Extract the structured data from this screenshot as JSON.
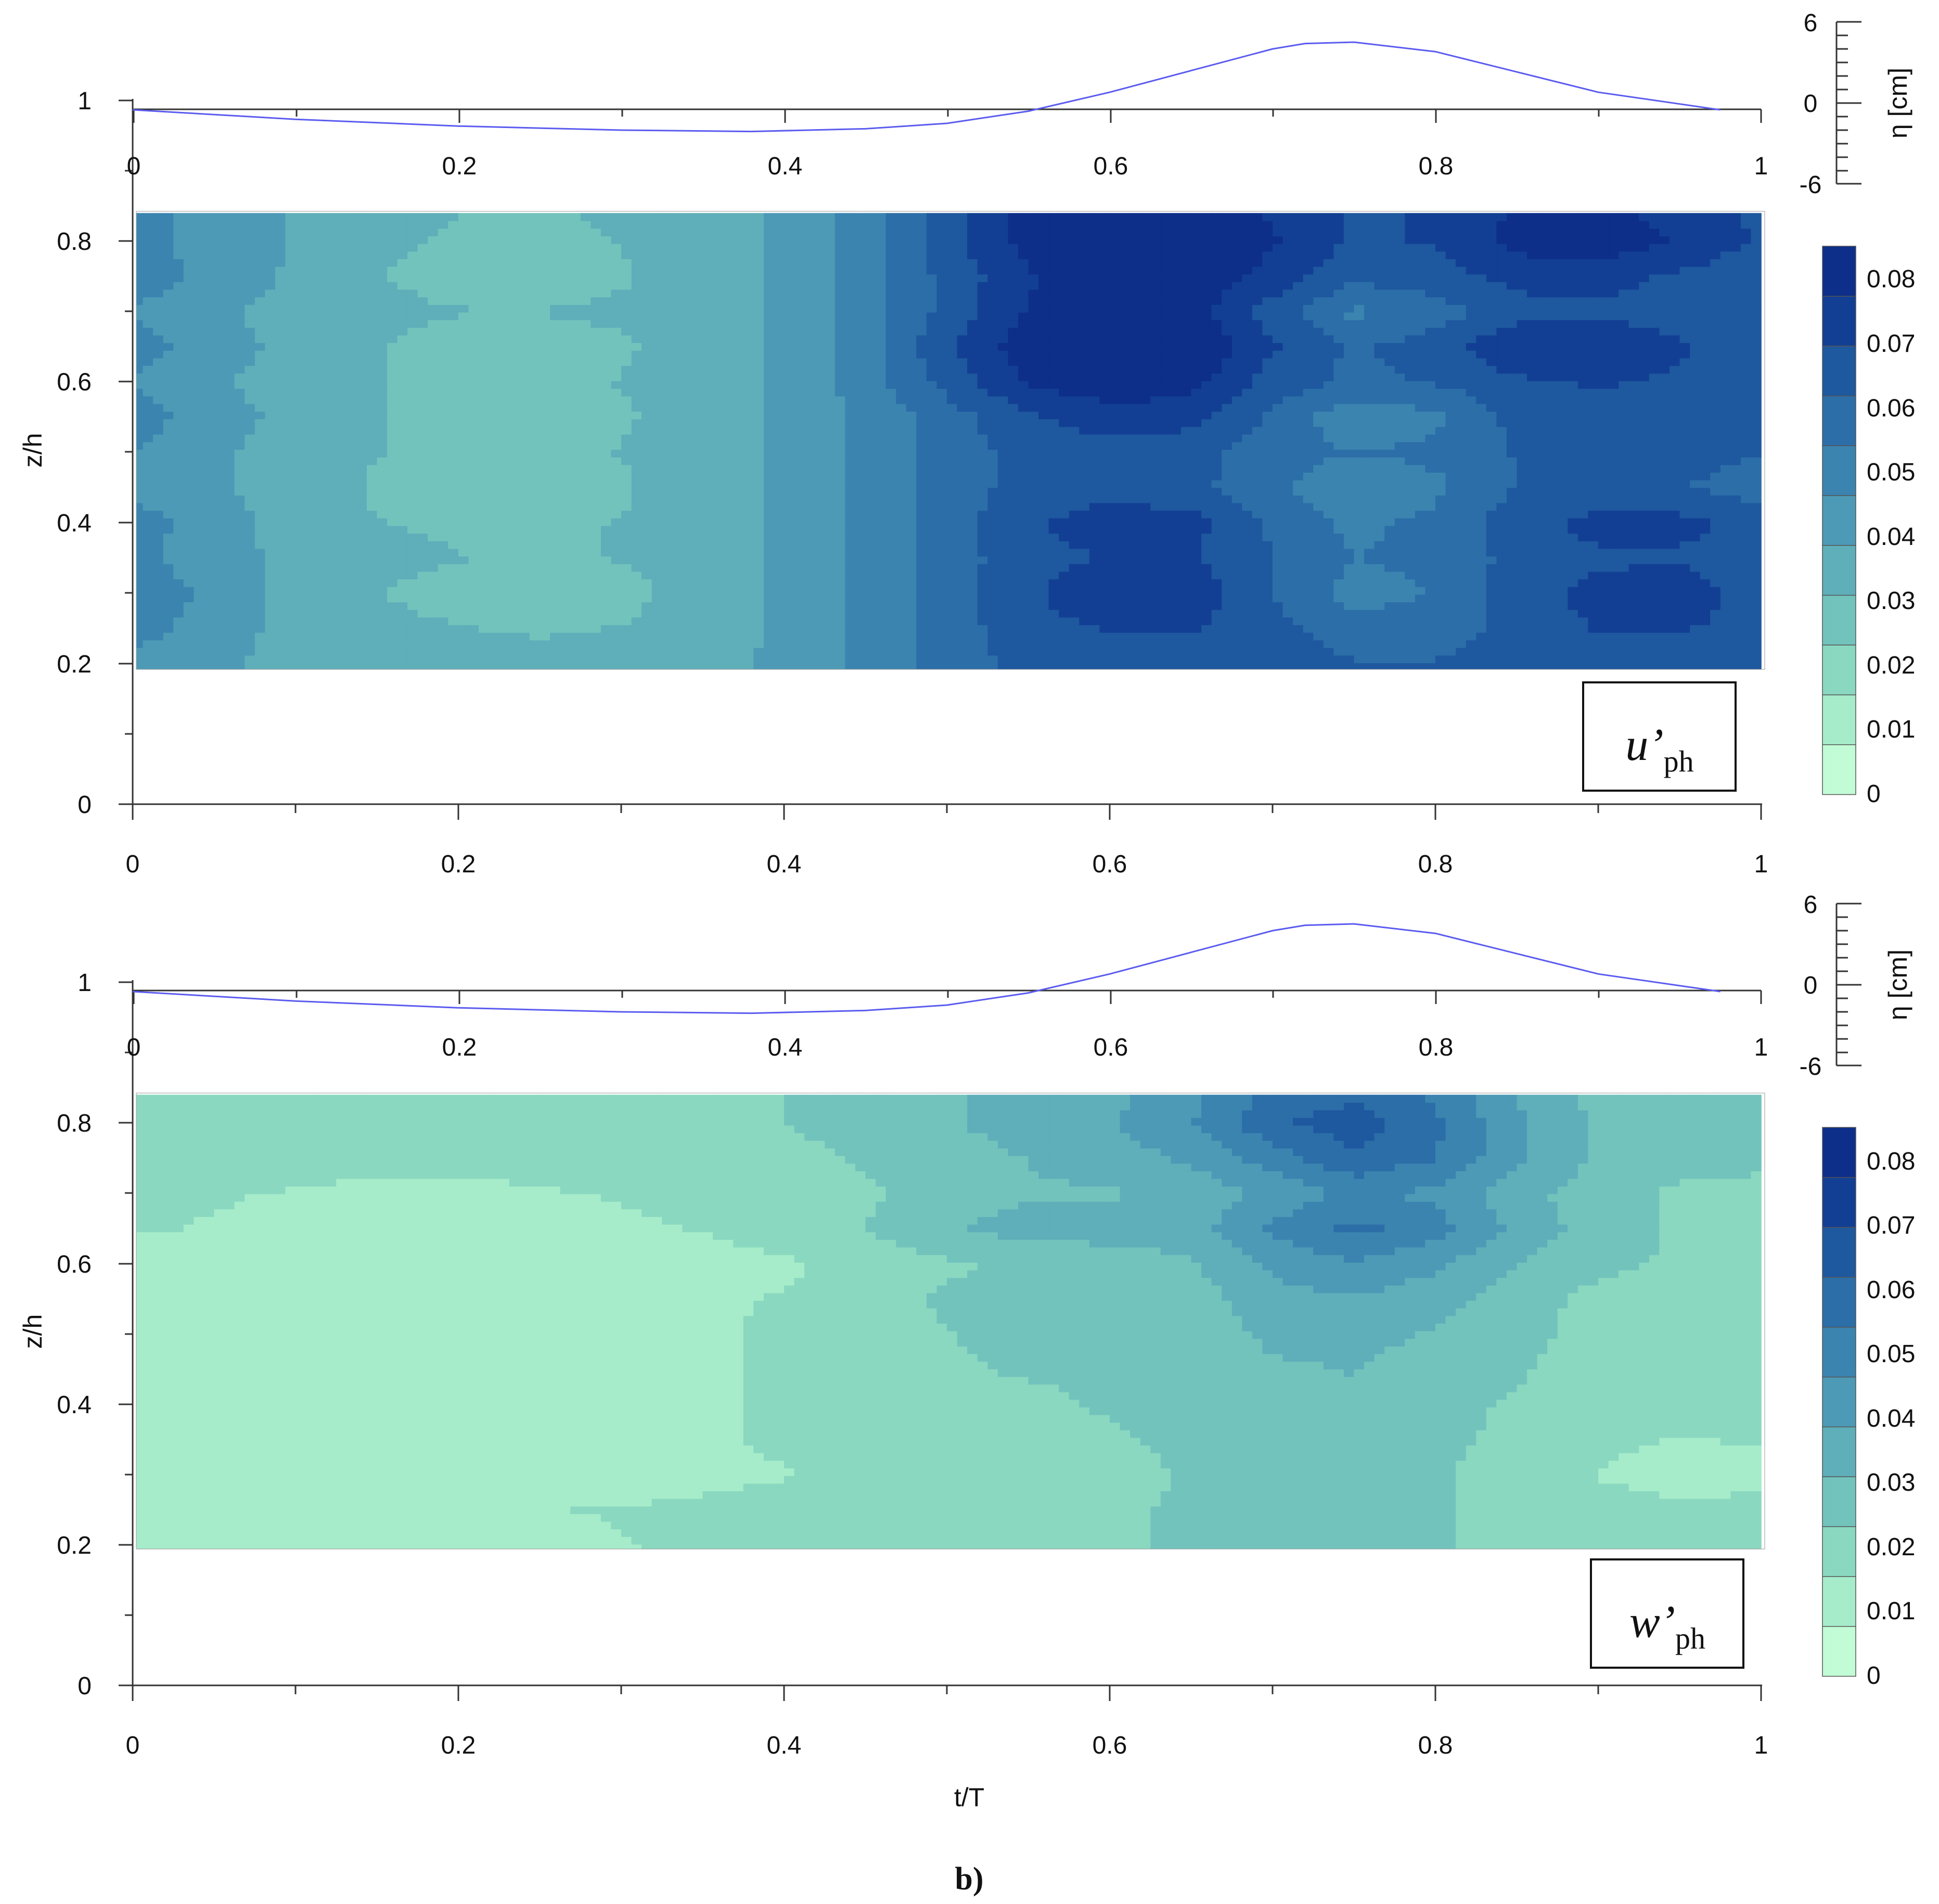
{
  "panels": [
    {
      "id": "u",
      "quantity_symbol": "u",
      "quantity_prime": "’",
      "quantity_sub": "ph",
      "eta_axis_label": "η [cm]",
      "eta_ticks": [
        "6",
        "0",
        "-6"
      ],
      "ylabel": "z/h",
      "ref_tick": "1",
      "y_ticks": [
        "0.8",
        "0.6",
        "0.4",
        "0.2",
        "0"
      ],
      "x_ticks_top": [
        "0",
        "0.2",
        "0.4",
        "0.6",
        "0.8",
        "1"
      ],
      "x_ticks_bottom": [
        "0",
        "0.2",
        "0.4",
        "0.6",
        "0.8",
        "1"
      ],
      "colorbar_ticks": [
        "0.08",
        "0.07",
        "0.06",
        "0.05",
        "0.04",
        "0.03",
        "0.02",
        "0.01",
        "0"
      ]
    },
    {
      "id": "w",
      "quantity_symbol": "w",
      "quantity_prime": "’",
      "quantity_sub": "ph",
      "eta_axis_label": "η [cm]",
      "eta_ticks": [
        "6",
        "0",
        "-6"
      ],
      "ylabel": "z/h",
      "ref_tick": "1",
      "y_ticks": [
        "0.8",
        "0.6",
        "0.4",
        "0.2",
        "0"
      ],
      "x_ticks_top": [
        "0",
        "0.2",
        "0.4",
        "0.6",
        "0.8",
        "1"
      ],
      "x_ticks_bottom": [
        "0",
        "0.2",
        "0.4",
        "0.6",
        "0.8",
        "1"
      ],
      "colorbar_ticks": [
        "0.08",
        "0.07",
        "0.06",
        "0.05",
        "0.04",
        "0.03",
        "0.02",
        "0.01",
        "0"
      ]
    }
  ],
  "xlabel": "t/T",
  "figure_caption": "b)",
  "colors": {
    "levels": [
      "#c2fcd6",
      "#a6ecca",
      "#8ad8c0",
      "#73c3bd",
      "#5fafba",
      "#4d9ab6",
      "#3b84b0",
      "#2c6ea8",
      "#1e589f",
      "#123f93",
      "#0d2f8a"
    ],
    "wave_line": "#5b5bf0"
  },
  "chart_data": [
    {
      "type": "heatmap",
      "quantity": "u'ph",
      "xlabel": "t/T",
      "ylabel": "z/h",
      "xlim": [
        0,
        1
      ],
      "ylim": [
        0,
        1
      ],
      "data_ylim": [
        0.19,
        0.84
      ],
      "colorbar": {
        "label": "",
        "range": [
          0,
          0.085
        ],
        "step": 0.0077
      },
      "surface_elevation": {
        "axis_label": "η [cm]",
        "ylim": [
          -6,
          6
        ],
        "t": [
          0,
          0.1,
          0.2,
          0.3,
          0.38,
          0.45,
          0.5,
          0.55,
          0.6,
          0.65,
          0.7,
          0.72,
          0.75,
          0.8,
          0.85,
          0.9,
          0.975
        ],
        "eta": [
          -0.5,
          -1.2,
          -1.7,
          -2.0,
          -2.1,
          -1.9,
          -1.5,
          -0.6,
          0.8,
          2.4,
          4.0,
          4.4,
          4.5,
          3.8,
          2.3,
          0.8,
          -0.5
        ]
      },
      "approx_field": {
        "t": [
          0,
          0.05,
          0.1,
          0.15,
          0.2,
          0.25,
          0.3,
          0.35,
          0.4,
          0.45,
          0.5,
          0.55,
          0.6,
          0.65,
          0.7,
          0.75,
          0.8,
          0.85,
          0.9,
          0.95,
          1.0
        ],
        "z": [
          0.2,
          0.25,
          0.3,
          0.35,
          0.4,
          0.45,
          0.5,
          0.55,
          0.6,
          0.65,
          0.7,
          0.75,
          0.8,
          0.84
        ],
        "values": [
          [
            0.044,
            0.04,
            0.036,
            0.034,
            0.033,
            0.033,
            0.034,
            0.036,
            0.04,
            0.048,
            0.058,
            0.064,
            0.066,
            0.066,
            0.064,
            0.062,
            0.062,
            0.064,
            0.066,
            0.066,
            0.066
          ],
          [
            0.05,
            0.042,
            0.036,
            0.032,
            0.031,
            0.03,
            0.031,
            0.034,
            0.04,
            0.048,
            0.058,
            0.066,
            0.07,
            0.07,
            0.064,
            0.058,
            0.058,
            0.064,
            0.07,
            0.07,
            0.066
          ],
          [
            0.052,
            0.044,
            0.036,
            0.031,
            0.029,
            0.026,
            0.029,
            0.033,
            0.04,
            0.048,
            0.058,
            0.068,
            0.076,
            0.074,
            0.062,
            0.05,
            0.054,
            0.066,
            0.072,
            0.074,
            0.066
          ],
          [
            0.048,
            0.042,
            0.036,
            0.032,
            0.031,
            0.03,
            0.031,
            0.034,
            0.04,
            0.048,
            0.058,
            0.066,
            0.07,
            0.07,
            0.062,
            0.054,
            0.056,
            0.064,
            0.068,
            0.068,
            0.064
          ],
          [
            0.05,
            0.042,
            0.035,
            0.031,
            0.03,
            0.03,
            0.031,
            0.034,
            0.04,
            0.048,
            0.058,
            0.068,
            0.074,
            0.072,
            0.06,
            0.052,
            0.056,
            0.066,
            0.072,
            0.072,
            0.066
          ],
          [
            0.044,
            0.04,
            0.034,
            0.03,
            0.027,
            0.027,
            0.03,
            0.034,
            0.04,
            0.048,
            0.058,
            0.064,
            0.066,
            0.064,
            0.056,
            0.046,
            0.052,
            0.062,
            0.064,
            0.062,
            0.058
          ],
          [
            0.046,
            0.04,
            0.034,
            0.031,
            0.029,
            0.029,
            0.031,
            0.034,
            0.04,
            0.048,
            0.058,
            0.064,
            0.066,
            0.064,
            0.058,
            0.054,
            0.056,
            0.062,
            0.064,
            0.064,
            0.062
          ],
          [
            0.05,
            0.042,
            0.036,
            0.031,
            0.029,
            0.027,
            0.03,
            0.034,
            0.04,
            0.048,
            0.058,
            0.068,
            0.074,
            0.072,
            0.06,
            0.048,
            0.052,
            0.064,
            0.068,
            0.066,
            0.064
          ],
          [
            0.046,
            0.04,
            0.034,
            0.031,
            0.03,
            0.03,
            0.031,
            0.034,
            0.04,
            0.05,
            0.064,
            0.078,
            0.082,
            0.08,
            0.066,
            0.06,
            0.062,
            0.068,
            0.07,
            0.068,
            0.064
          ],
          [
            0.05,
            0.042,
            0.036,
            0.031,
            0.029,
            0.028,
            0.03,
            0.034,
            0.04,
            0.05,
            0.068,
            0.082,
            0.086,
            0.086,
            0.07,
            0.06,
            0.066,
            0.076,
            0.076,
            0.07,
            0.066
          ],
          [
            0.046,
            0.04,
            0.035,
            0.032,
            0.031,
            0.031,
            0.032,
            0.035,
            0.04,
            0.05,
            0.064,
            0.078,
            0.082,
            0.08,
            0.066,
            0.052,
            0.058,
            0.066,
            0.068,
            0.066,
            0.064
          ],
          [
            0.05,
            0.044,
            0.037,
            0.031,
            0.029,
            0.027,
            0.03,
            0.035,
            0.04,
            0.05,
            0.064,
            0.076,
            0.084,
            0.084,
            0.074,
            0.064,
            0.066,
            0.072,
            0.072,
            0.068,
            0.064
          ],
          [
            0.048,
            0.044,
            0.038,
            0.032,
            0.03,
            0.028,
            0.031,
            0.035,
            0.04,
            0.05,
            0.066,
            0.08,
            0.086,
            0.086,
            0.078,
            0.068,
            0.07,
            0.08,
            0.082,
            0.076,
            0.068
          ],
          [
            0.048,
            0.044,
            0.038,
            0.033,
            0.031,
            0.03,
            0.032,
            0.035,
            0.04,
            0.05,
            0.066,
            0.08,
            0.084,
            0.084,
            0.076,
            0.068,
            0.07,
            0.078,
            0.08,
            0.074,
            0.068
          ]
        ]
      }
    },
    {
      "type": "heatmap",
      "quantity": "w'ph",
      "xlabel": "t/T",
      "ylabel": "z/h",
      "xlim": [
        0,
        1
      ],
      "ylim": [
        0,
        1
      ],
      "data_ylim": [
        0.19,
        0.84
      ],
      "colorbar": {
        "label": "",
        "range": [
          0,
          0.085
        ],
        "step": 0.0077
      },
      "surface_elevation": {
        "axis_label": "η [cm]",
        "ylim": [
          -6,
          6
        ],
        "t": [
          0,
          0.1,
          0.2,
          0.3,
          0.38,
          0.45,
          0.5,
          0.55,
          0.6,
          0.65,
          0.7,
          0.72,
          0.75,
          0.8,
          0.85,
          0.9,
          0.975
        ],
        "eta": [
          -0.5,
          -1.2,
          -1.7,
          -2.0,
          -2.1,
          -1.9,
          -1.5,
          -0.6,
          0.8,
          2.4,
          4.0,
          4.4,
          4.5,
          3.8,
          2.3,
          0.8,
          -0.5
        ]
      },
      "approx_field": {
        "t": [
          0,
          0.05,
          0.1,
          0.15,
          0.2,
          0.25,
          0.3,
          0.35,
          0.4,
          0.45,
          0.5,
          0.55,
          0.6,
          0.65,
          0.7,
          0.75,
          0.8,
          0.85,
          0.9,
          0.95,
          1.0
        ],
        "z": [
          0.2,
          0.25,
          0.3,
          0.35,
          0.4,
          0.45,
          0.5,
          0.55,
          0.6,
          0.65,
          0.7,
          0.75,
          0.8,
          0.84
        ],
        "values": [
          [
            0.01,
            0.01,
            0.01,
            0.01,
            0.01,
            0.012,
            0.015,
            0.017,
            0.018,
            0.018,
            0.019,
            0.02,
            0.022,
            0.024,
            0.026,
            0.026,
            0.024,
            0.021,
            0.019,
            0.018,
            0.018
          ],
          [
            0.013,
            0.012,
            0.012,
            0.013,
            0.014,
            0.015,
            0.016,
            0.018,
            0.019,
            0.019,
            0.02,
            0.021,
            0.022,
            0.024,
            0.026,
            0.026,
            0.024,
            0.021,
            0.019,
            0.017,
            0.017
          ],
          [
            0.009,
            0.008,
            0.008,
            0.008,
            0.008,
            0.009,
            0.01,
            0.012,
            0.015,
            0.017,
            0.018,
            0.019,
            0.02,
            0.024,
            0.027,
            0.027,
            0.024,
            0.02,
            0.015,
            0.012,
            0.014
          ],
          [
            0.012,
            0.012,
            0.012,
            0.012,
            0.012,
            0.013,
            0.013,
            0.014,
            0.017,
            0.018,
            0.02,
            0.021,
            0.022,
            0.025,
            0.028,
            0.028,
            0.025,
            0.021,
            0.017,
            0.015,
            0.016
          ],
          [
            0.01,
            0.01,
            0.01,
            0.01,
            0.01,
            0.011,
            0.012,
            0.014,
            0.017,
            0.019,
            0.021,
            0.021,
            0.024,
            0.026,
            0.03,
            0.03,
            0.026,
            0.022,
            0.019,
            0.018,
            0.019
          ],
          [
            0.01,
            0.01,
            0.01,
            0.01,
            0.01,
            0.011,
            0.012,
            0.014,
            0.017,
            0.019,
            0.022,
            0.024,
            0.025,
            0.027,
            0.03,
            0.031,
            0.028,
            0.024,
            0.02,
            0.019,
            0.019
          ],
          [
            0.01,
            0.01,
            0.01,
            0.01,
            0.01,
            0.011,
            0.012,
            0.014,
            0.017,
            0.02,
            0.023,
            0.025,
            0.025,
            0.027,
            0.032,
            0.033,
            0.03,
            0.025,
            0.021,
            0.02,
            0.02
          ],
          [
            0.01,
            0.01,
            0.01,
            0.01,
            0.01,
            0.011,
            0.012,
            0.014,
            0.016,
            0.021,
            0.024,
            0.025,
            0.025,
            0.027,
            0.036,
            0.038,
            0.034,
            0.026,
            0.021,
            0.018,
            0.019
          ],
          [
            0.012,
            0.012,
            0.01,
            0.01,
            0.01,
            0.01,
            0.01,
            0.012,
            0.014,
            0.018,
            0.022,
            0.025,
            0.027,
            0.03,
            0.04,
            0.045,
            0.04,
            0.031,
            0.025,
            0.022,
            0.022
          ],
          [
            0.016,
            0.015,
            0.013,
            0.012,
            0.012,
            0.012,
            0.014,
            0.016,
            0.02,
            0.023,
            0.03,
            0.034,
            0.034,
            0.035,
            0.048,
            0.056,
            0.05,
            0.036,
            0.027,
            0.022,
            0.022
          ],
          [
            0.016,
            0.016,
            0.015,
            0.014,
            0.014,
            0.015,
            0.016,
            0.018,
            0.02,
            0.022,
            0.026,
            0.03,
            0.03,
            0.033,
            0.04,
            0.048,
            0.044,
            0.034,
            0.026,
            0.022,
            0.022
          ],
          [
            0.017,
            0.018,
            0.018,
            0.017,
            0.017,
            0.017,
            0.018,
            0.02,
            0.021,
            0.024,
            0.028,
            0.031,
            0.034,
            0.04,
            0.05,
            0.06,
            0.054,
            0.04,
            0.03,
            0.025,
            0.024
          ],
          [
            0.02,
            0.02,
            0.019,
            0.018,
            0.018,
            0.019,
            0.02,
            0.021,
            0.023,
            0.026,
            0.03,
            0.034,
            0.038,
            0.046,
            0.06,
            0.066,
            0.056,
            0.04,
            0.03,
            0.024,
            0.024
          ],
          [
            0.02,
            0.02,
            0.019,
            0.018,
            0.018,
            0.019,
            0.02,
            0.021,
            0.023,
            0.026,
            0.03,
            0.033,
            0.036,
            0.044,
            0.056,
            0.06,
            0.052,
            0.038,
            0.028,
            0.023,
            0.023
          ]
        ]
      }
    }
  ]
}
